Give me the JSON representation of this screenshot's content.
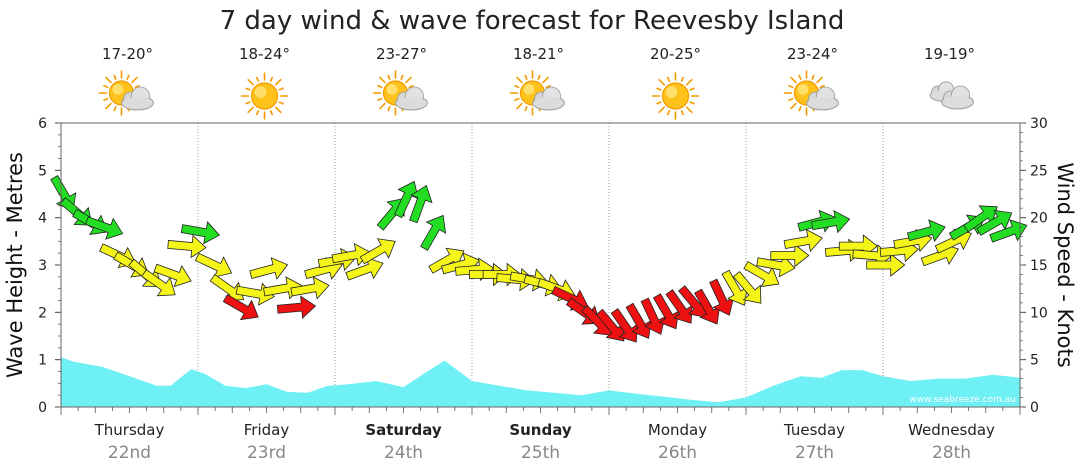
{
  "chart_data": {
    "type": "line",
    "title": "7 day wind & wave forecast for Reevesby Island",
    "ylabel_left": "Wave Height - Metres",
    "ylabel_right": "Wind Speed - Knots",
    "ylim_left": [
      0,
      6
    ],
    "ylim_right": [
      0,
      30
    ],
    "left_ticks": [
      "0",
      "1",
      "2",
      "3",
      "4",
      "5",
      "6"
    ],
    "right_ticks": [
      "0",
      "5",
      "10",
      "15",
      "20",
      "25",
      "30"
    ],
    "watermark": "www.seabreeze.com.au",
    "days": [
      {
        "name": "Thursday",
        "date": "22nd",
        "temp": "17-20°",
        "icon": "partly-cloudy-icon",
        "bold": false
      },
      {
        "name": "Friday",
        "date": "23rd",
        "temp": "18-24°",
        "icon": "sunny-icon",
        "bold": false
      },
      {
        "name": "Saturday",
        "date": "24th",
        "temp": "23-27°",
        "icon": "partly-cloudy-icon",
        "bold": true
      },
      {
        "name": "Sunday",
        "date": "25th",
        "temp": "18-21°",
        "icon": "partly-cloudy-icon",
        "bold": true
      },
      {
        "name": "Monday",
        "date": "26th",
        "temp": "20-25°",
        "icon": "sunny-icon",
        "bold": false
      },
      {
        "name": "Tuesday",
        "date": "27th",
        "temp": "23-24°",
        "icon": "partly-cloudy-icon",
        "bold": false
      },
      {
        "name": "Wednesday",
        "date": "28th",
        "temp": "19-19°",
        "icon": "cloudy-icon",
        "bold": false
      }
    ],
    "wave_height_series": {
      "name": "Wave Height",
      "color": "#6ff0f5",
      "x_days": [
        0,
        0.1,
        0.3,
        0.5,
        0.7,
        0.8,
        0.95,
        1.05,
        1.2,
        1.35,
        1.5,
        1.65,
        1.8,
        1.95,
        2.1,
        2.3,
        2.5,
        2.7,
        2.8,
        3.0,
        3.2,
        3.4,
        3.6,
        3.8,
        4.0,
        4.2,
        4.4,
        4.6,
        4.8,
        5.0,
        5.2,
        5.4,
        5.55,
        5.7,
        5.85,
        6.0,
        6.2,
        6.4,
        6.6,
        6.8,
        7.0
      ],
      "values_m": [
        1.05,
        0.95,
        0.85,
        0.65,
        0.45,
        0.45,
        0.8,
        0.7,
        0.45,
        0.4,
        0.48,
        0.32,
        0.3,
        0.45,
        0.48,
        0.55,
        0.42,
        0.8,
        0.98,
        0.55,
        0.45,
        0.35,
        0.3,
        0.25,
        0.35,
        0.28,
        0.22,
        0.15,
        0.1,
        0.2,
        0.45,
        0.65,
        0.62,
        0.78,
        0.78,
        0.65,
        0.55,
        0.6,
        0.6,
        0.68,
        0.62
      ]
    },
    "wind_series": {
      "name": "Wind Speed",
      "color_scale": {
        "green": "#22dd22",
        "yellow": "#f5f519",
        "red": "#ee1111"
      },
      "x_days": [
        0.02,
        0.12,
        0.22,
        0.32,
        0.42,
        0.52,
        0.62,
        0.72,
        0.82,
        0.92,
        1.02,
        1.12,
        1.22,
        1.32,
        1.42,
        1.52,
        1.62,
        1.72,
        1.82,
        1.92,
        2.02,
        2.12,
        2.22,
        2.32,
        2.42,
        2.52,
        2.62,
        2.72,
        2.82,
        2.92,
        3.02,
        3.12,
        3.22,
        3.32,
        3.42,
        3.52,
        3.62,
        3.72,
        3.82,
        3.92,
        4.02,
        4.12,
        4.22,
        4.32,
        4.42,
        4.52,
        4.62,
        4.72,
        4.82,
        4.92,
        5.02,
        5.12,
        5.22,
        5.32,
        5.42,
        5.52,
        5.62,
        5.72,
        5.82,
        5.92,
        6.02,
        6.12,
        6.22,
        6.32,
        6.42,
        6.52,
        6.62,
        6.72,
        6.82,
        6.92
      ],
      "values_kts": [
        22.5,
        20.5,
        19.5,
        19,
        16,
        15,
        14,
        13,
        14,
        17,
        18.5,
        15,
        12.5,
        10.5,
        12,
        14.5,
        12.5,
        10.5,
        12.5,
        14.5,
        15.5,
        16,
        14.5,
        16.5,
        20.5,
        22,
        21.5,
        18.5,
        15.5,
        15,
        14.5,
        14,
        14,
        13.5,
        13.5,
        13,
        12.5,
        11.5,
        10,
        9,
        8.5,
        8.5,
        9,
        9.5,
        10,
        10.5,
        11,
        10.5,
        11.5,
        12.5,
        12.5,
        14,
        15,
        16,
        17.5,
        19.5,
        19.5,
        16.5,
        17,
        16,
        15,
        16.5,
        17.5,
        18.5,
        16,
        17.5,
        19,
        20,
        19.5,
        18.5
      ],
      "direction_deg": [
        150,
        130,
        120,
        110,
        115,
        120,
        130,
        125,
        110,
        95,
        100,
        115,
        125,
        120,
        100,
        75,
        80,
        85,
        80,
        75,
        80,
        80,
        70,
        60,
        40,
        25,
        20,
        30,
        60,
        75,
        85,
        90,
        90,
        95,
        100,
        105,
        110,
        115,
        125,
        135,
        140,
        145,
        150,
        155,
        150,
        145,
        140,
        150,
        155,
        150,
        140,
        120,
        100,
        90,
        80,
        75,
        80,
        85,
        90,
        95,
        90,
        85,
        80,
        75,
        70,
        65,
        60,
        55,
        60,
        70
      ]
    }
  }
}
